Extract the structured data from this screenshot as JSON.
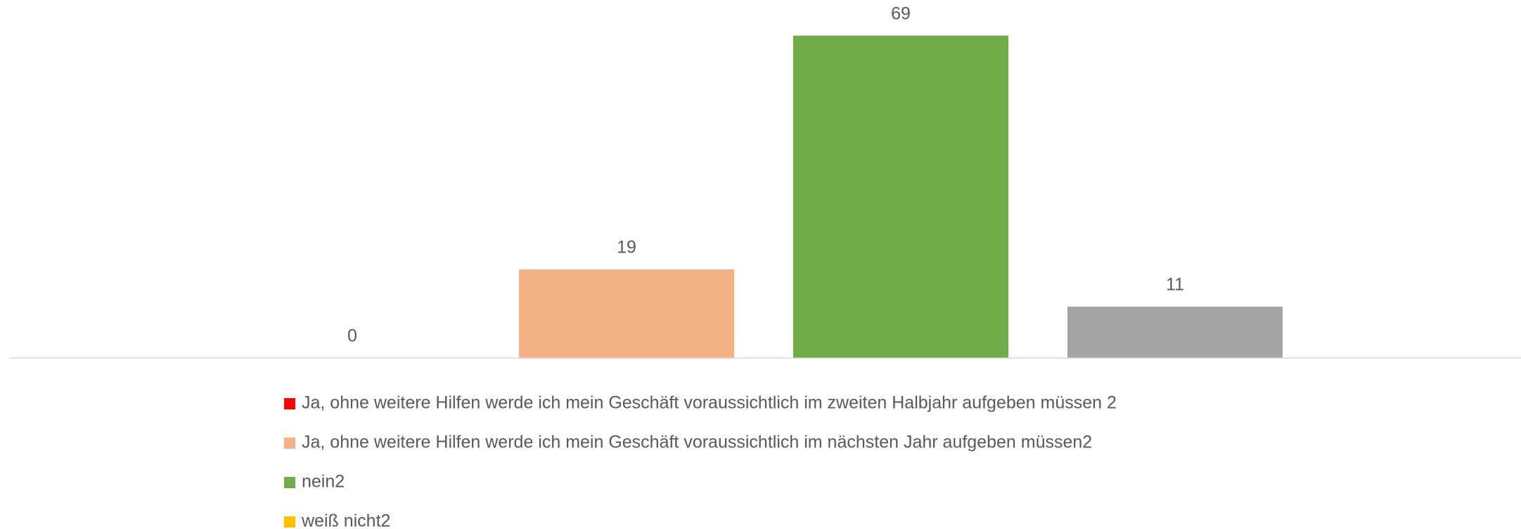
{
  "chart_data": {
    "type": "bar",
    "series": [
      {
        "name": "Ja, ohne weitere Hilfen werde ich mein Geschäft voraussichtlich im zweiten Halbjahr aufgeben müssen 2",
        "color": "#ff0000",
        "values": [
          0
        ]
      },
      {
        "name": "Ja, ohne weitere Hilfen werde ich mein Geschäft voraussichtlich im nächsten Jahr aufgeben müssen2",
        "color": "#f4b183",
        "values": [
          19
        ]
      },
      {
        "name": "nein2",
        "color": "#70ad47",
        "values": [
          69
        ]
      },
      {
        "name": "weiß nicht2",
        "color": "#a5a5a5",
        "legend_color": "#ffc000",
        "values": [
          11
        ]
      }
    ],
    "ylim": [
      0,
      70
    ]
  }
}
